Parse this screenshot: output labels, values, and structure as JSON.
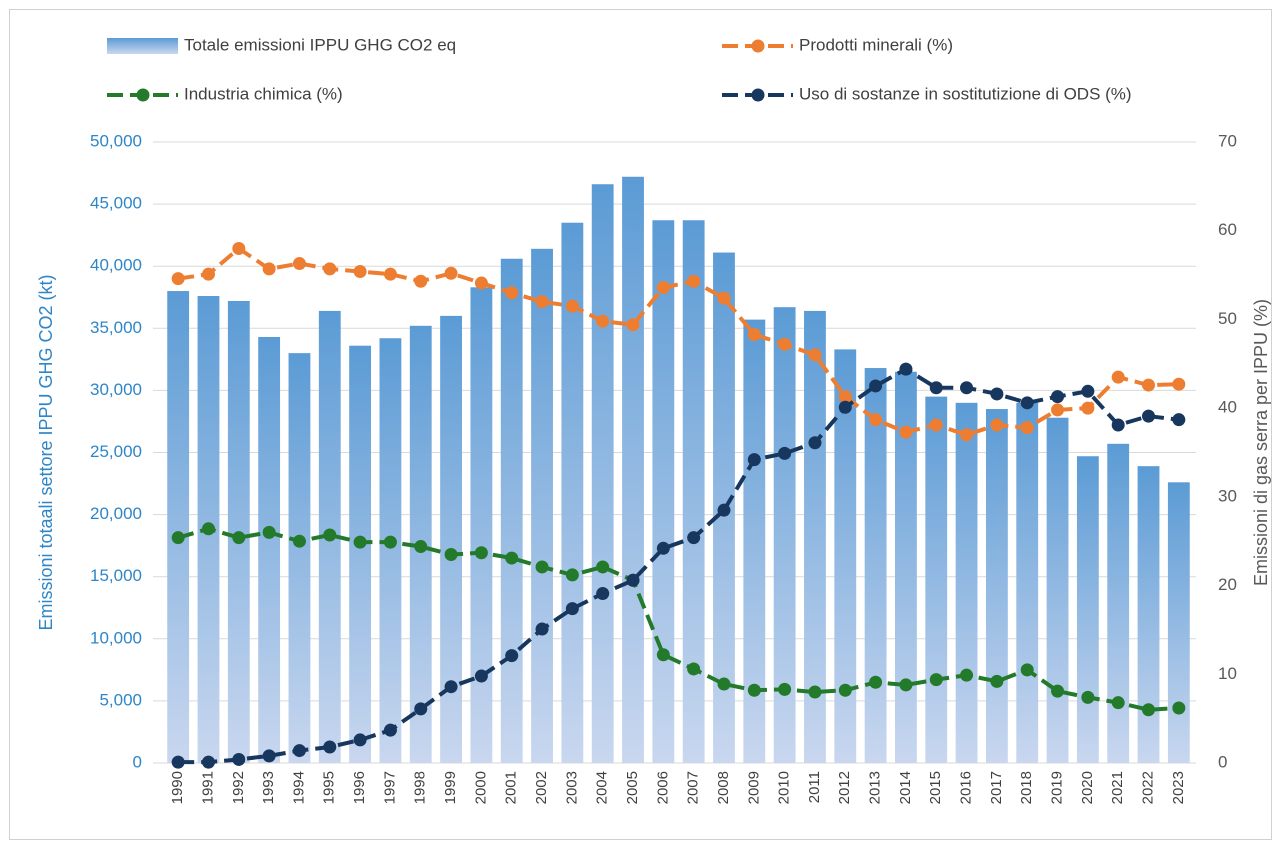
{
  "chart_data": {
    "type": "bar_line",
    "y_label": "Emissioni totaali settore IPPU GHG CO2 (kt)",
    "y2_label": "Emissioni di gas serra per IPPU (%)",
    "categories": [
      "1990",
      "1991",
      "1992",
      "1993",
      "1994",
      "1995",
      "1996",
      "1997",
      "1998",
      "1999",
      "2000",
      "2001",
      "2002",
      "2003",
      "2004",
      "2005",
      "2006",
      "2007",
      "2008",
      "2009",
      "2010",
      "2011",
      "2012",
      "2013",
      "2014",
      "2015",
      "2016",
      "2017",
      "2018",
      "2019",
      "2020",
      "2021",
      "2022",
      "2023"
    ],
    "series": [
      {
        "name": "Totale emissioni IPPU GHG CO2 eq",
        "type": "bar",
        "color": "#5b9bd5",
        "values": [
          38000,
          37600,
          37200,
          34300,
          33000,
          36400,
          33600,
          34200,
          35200,
          36000,
          38300,
          40600,
          41400,
          43500,
          46600,
          47200,
          43700,
          43700,
          41100,
          35700,
          36700,
          36400,
          33300,
          31800,
          31500,
          29500,
          29000,
          28500,
          29000,
          27800,
          24700,
          25700,
          23900,
          22600
        ]
      },
      {
        "name": "Prodotti minerali (%)",
        "type": "line",
        "axis": "y2",
        "color": "#ed7d31",
        "values": [
          54.6,
          55.1,
          58.0,
          55.7,
          56.3,
          55.7,
          55.4,
          55.1,
          54.3,
          55.2,
          54.1,
          53.0,
          52.0,
          51.5,
          49.8,
          49.4,
          53.6,
          54.3,
          52.4,
          48.3,
          47.2,
          46.0,
          41.3,
          38.7,
          37.3,
          38.1,
          37.0,
          38.1,
          37.8,
          39.8,
          40.0,
          43.5,
          42.6,
          42.7
        ]
      },
      {
        "name": "Industria chimica (%)",
        "type": "line",
        "axis": "y2",
        "color": "#237a2b",
        "values": [
          25.4,
          26.4,
          25.4,
          26.0,
          25.0,
          25.7,
          24.9,
          24.9,
          24.4,
          23.5,
          23.7,
          23.1,
          22.1,
          21.2,
          22.1,
          20.6,
          12.2,
          10.6,
          8.9,
          8.2,
          8.3,
          8.0,
          8.2,
          9.1,
          8.8,
          9.4,
          9.9,
          9.2,
          10.5,
          8.1,
          7.4,
          6.8,
          6.0,
          6.2
        ]
      },
      {
        "name": "Uso di sostanze in sostitutizione di ODS (%)",
        "type": "line",
        "axis": "y2",
        "color": "#17375e",
        "values": [
          0.1,
          0.1,
          0.4,
          0.8,
          1.4,
          1.8,
          2.6,
          3.7,
          6.1,
          8.6,
          9.8,
          12.1,
          15.1,
          17.4,
          19.1,
          20.6,
          24.2,
          25.4,
          28.5,
          34.2,
          34.9,
          36.1,
          40.1,
          42.5,
          44.4,
          42.3,
          42.3,
          41.6,
          40.6,
          41.3,
          41.9,
          38.1,
          39.1,
          38.7
        ]
      }
    ],
    "ylim": [
      0,
      50000
    ],
    "yticks": [
      0,
      {
        "value": 5000,
        "label": "5,000"
      },
      {
        "value": 10000,
        "label": "10,000"
      },
      {
        "value": 15000,
        "label": "15,000"
      },
      {
        "value": 20000,
        "label": "20,000"
      },
      {
        "value": 25000,
        "label": "25,000"
      },
      {
        "value": 30000,
        "label": "30,000"
      },
      {
        "value": 35000,
        "label": "35,000"
      },
      {
        "value": 40000,
        "label": "40,000"
      },
      {
        "value": 45000,
        "label": "45,000"
      },
      {
        "value": 50000,
        "label": "50,000"
      }
    ],
    "y2lim": [
      0,
      70
    ],
    "y2ticks": [
      0,
      10,
      20,
      30,
      40,
      50,
      60,
      70
    ],
    "grid": true,
    "legend": "top"
  }
}
